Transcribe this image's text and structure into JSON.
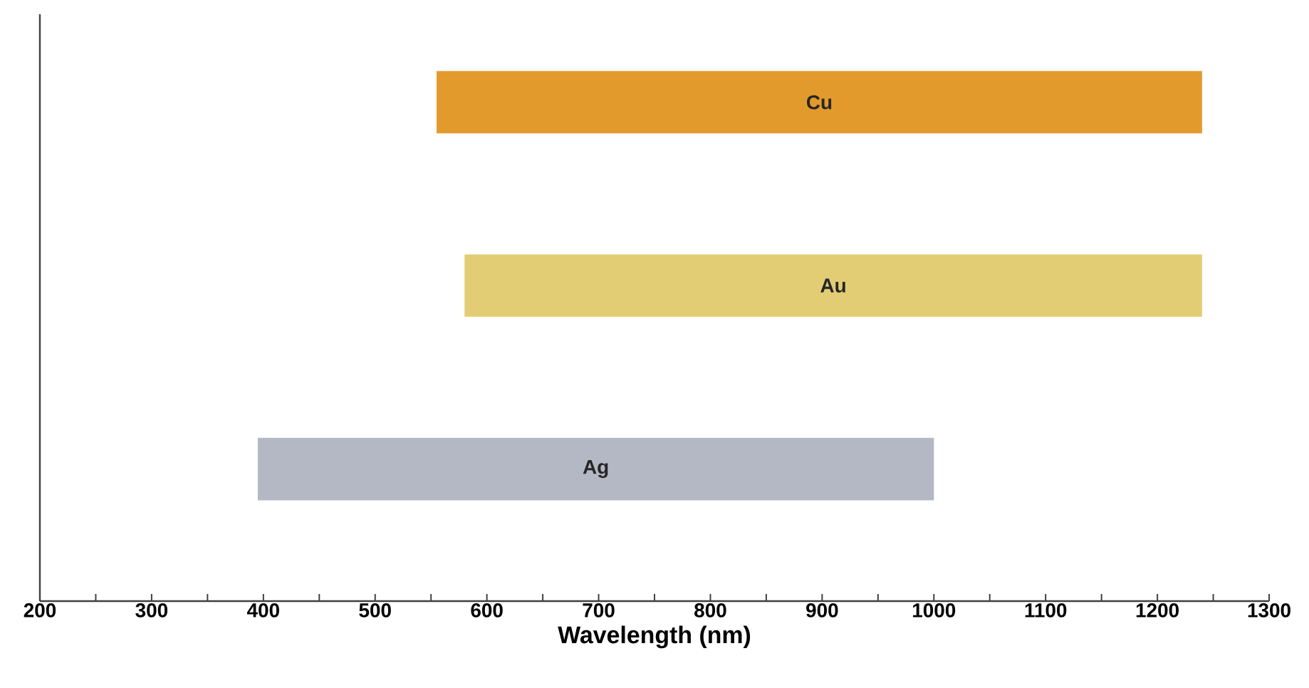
{
  "chart_data": {
    "type": "bar",
    "orientation": "horizontal",
    "xlabel": "Wavelength (nm)",
    "categories": [
      "Cu",
      "Au",
      "Ag"
    ],
    "base": [
      555,
      580,
      395
    ],
    "values": [
      685,
      660,
      605
    ],
    "colors": [
      "#e39a2c",
      "#e3cd74",
      "#b4b8c4"
    ],
    "xlim": [
      200,
      1300
    ],
    "xticks": [
      200,
      {
        "value": 250,
        "label": null
      },
      300,
      {
        "value": 350,
        "label": null
      },
      400,
      {
        "value": 450,
        "label": null
      },
      500,
      {
        "value": 550,
        "label": null
      },
      600,
      {
        "value": 650,
        "label": null
      },
      700,
      {
        "value": 750,
        "label": null
      },
      800,
      {
        "value": 850,
        "label": null
      },
      900,
      {
        "value": 950,
        "label": null
      },
      1000,
      {
        "value": 1050,
        "label": null
      },
      1100,
      {
        "value": 1150,
        "label": null
      },
      1200,
      {
        "value": 1250,
        "label": null
      },
      1300
    ],
    "grid": false
  }
}
